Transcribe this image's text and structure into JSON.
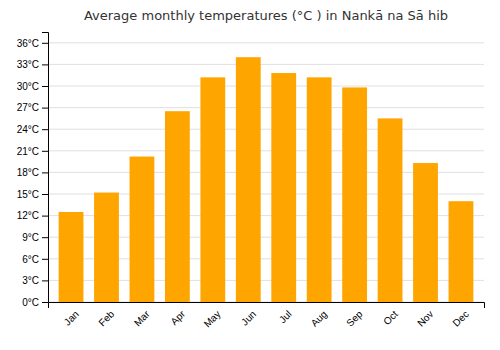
{
  "chart_data": {
    "type": "bar",
    "title": "Average monthly temperatures (°C ) in Nankā na Sā hib",
    "categories": [
      "Jan",
      "Feb",
      "Mar",
      "Apr",
      "May",
      "Jun",
      "Jul",
      "Aug",
      "Sep",
      "Oct",
      "Nov",
      "Dec"
    ],
    "values": [
      12.5,
      15.2,
      20.2,
      26.5,
      31.2,
      34.0,
      31.8,
      31.2,
      29.8,
      25.5,
      19.3,
      14.0
    ],
    "color": "#FFA500",
    "ylim": [
      0,
      37.5
    ],
    "yticks": [
      {
        "value": 0,
        "label": "0°C"
      },
      {
        "value": 3,
        "label": "3°C"
      },
      {
        "value": 6,
        "label": "6°C"
      },
      {
        "value": 9,
        "label": "9°C"
      },
      {
        "value": 12,
        "label": "12°C"
      },
      {
        "value": 15,
        "label": "15°C"
      },
      {
        "value": 18,
        "label": "18°C"
      },
      {
        "value": 21,
        "label": "21°C"
      },
      {
        "value": 24,
        "label": "24°C"
      },
      {
        "value": 27,
        "label": "27°C"
      },
      {
        "value": 30,
        "label": "30°C"
      },
      {
        "value": 33,
        "label": "33°C"
      },
      {
        "value": 36,
        "label": "36°C"
      }
    ],
    "grid": true
  }
}
